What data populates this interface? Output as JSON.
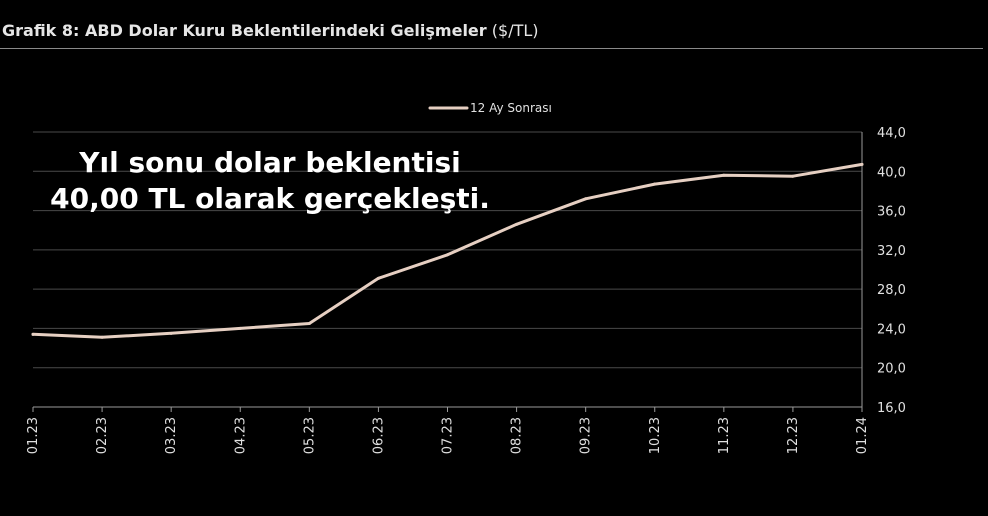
{
  "header": {
    "title": "Grafik 8: ABD Dolar Kuru Beklentilerindeki Gelişmeler",
    "unit": "($/TL)"
  },
  "annotation": {
    "line1": "Yıl sonu dolar beklentisi",
    "line2": "40,00 TL olarak gerçekleşti."
  },
  "colors": {
    "series": "#e6cfc2",
    "grid": "#4a4a4a",
    "axis": "#9a9a9a",
    "background": "#000000"
  },
  "chart_data": {
    "type": "line",
    "x": [
      "01.23",
      "02.23",
      "03.23",
      "04.23",
      "05.23",
      "06.23",
      "07.23",
      "08.23",
      "09.23",
      "10.23",
      "11.23",
      "12.23",
      "01.24"
    ],
    "series": [
      {
        "name": "12 Ay Sonrası",
        "values": [
          23.4,
          23.1,
          23.5,
          24.0,
          24.5,
          29.1,
          31.5,
          34.6,
          37.2,
          38.7,
          39.6,
          39.5,
          40.7
        ]
      }
    ],
    "yticks": [
      "16,0",
      "20,0",
      "24,0",
      "28,0",
      "32,0",
      "36,0",
      "40,0",
      "44,0"
    ],
    "ylim": [
      16,
      44
    ],
    "grid": "horizontal",
    "y_axis_position": "right",
    "legend": "top-center"
  }
}
